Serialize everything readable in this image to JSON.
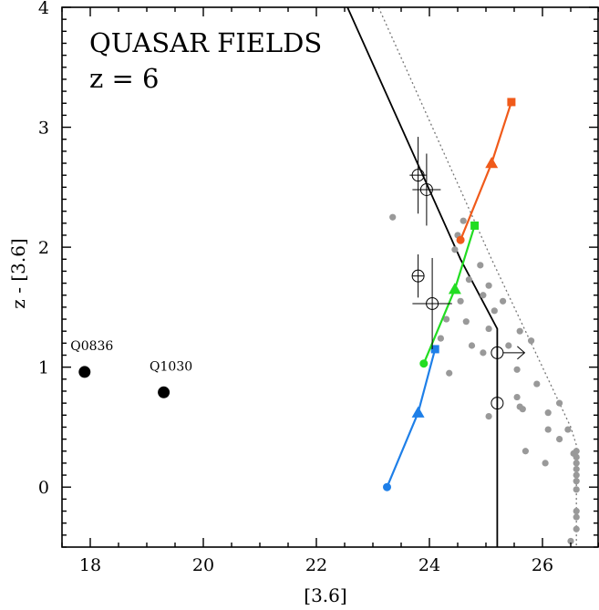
{
  "chart_data": {
    "type": "scatter",
    "title": "QUASAR FIELDS",
    "subtitle": "z = 6",
    "xlabel": "[3.6]",
    "ylabel": "z - [3.6]",
    "xlim": [
      17.5,
      27.0
    ],
    "ylim": [
      -0.5,
      4.0
    ],
    "xticks": [
      18,
      20,
      22,
      24,
      26
    ],
    "yticks": [
      0,
      1,
      2,
      3,
      4
    ],
    "grid": false,
    "quasars": [
      {
        "label": "Q0836",
        "x": 17.9,
        "y": 0.96
      },
      {
        "label": "Q1030",
        "x": 19.3,
        "y": 0.79
      }
    ],
    "tracks": [
      {
        "color": "#1E7FE8",
        "points": [
          {
            "x": 23.25,
            "y": 0.0,
            "marker": "circle"
          },
          {
            "x": 23.8,
            "y": 0.62,
            "marker": "triangle"
          },
          {
            "x": 24.1,
            "y": 1.15,
            "marker": "square"
          }
        ]
      },
      {
        "color": "#22DD22",
        "points": [
          {
            "x": 23.9,
            "y": 1.03,
            "marker": "circle"
          },
          {
            "x": 24.45,
            "y": 1.65,
            "marker": "triangle"
          },
          {
            "x": 24.8,
            "y": 2.18,
            "marker": "square"
          }
        ]
      },
      {
        "color": "#F05A1A",
        "points": [
          {
            "x": 24.55,
            "y": 2.06,
            "marker": "circle"
          },
          {
            "x": 25.1,
            "y": 2.7,
            "marker": "triangle"
          },
          {
            "x": 25.45,
            "y": 3.21,
            "marker": "square"
          }
        ]
      }
    ],
    "candidates": [
      {
        "x": 23.8,
        "y": 2.6,
        "xerr": 0.15,
        "yerr": 0.32
      },
      {
        "x": 23.95,
        "y": 2.48,
        "xerr": 0.25,
        "yerr": 0.3
      },
      {
        "x": 23.8,
        "y": 1.76,
        "xerr": 0.1,
        "yerr": 0.18
      },
      {
        "x": 24.05,
        "y": 1.53,
        "xerr": 0.35,
        "yerr": 0.38
      },
      {
        "x": 25.2,
        "y": 1.12,
        "xerr": 0,
        "yerr": 0,
        "lower_limit_x": true
      },
      {
        "x": 25.2,
        "y": 0.7,
        "xerr": 0,
        "yerr": 0
      }
    ],
    "field_sources": [
      {
        "x": 23.35,
        "y": 2.25
      },
      {
        "x": 24.6,
        "y": 2.22
      },
      {
        "x": 24.5,
        "y": 2.1
      },
      {
        "x": 24.45,
        "y": 1.98
      },
      {
        "x": 24.9,
        "y": 1.85
      },
      {
        "x": 24.7,
        "y": 1.73
      },
      {
        "x": 25.05,
        "y": 1.68
      },
      {
        "x": 24.95,
        "y": 1.6
      },
      {
        "x": 24.55,
        "y": 1.55
      },
      {
        "x": 25.3,
        "y": 1.55
      },
      {
        "x": 25.15,
        "y": 1.47
      },
      {
        "x": 24.3,
        "y": 1.4
      },
      {
        "x": 24.65,
        "y": 1.38
      },
      {
        "x": 25.05,
        "y": 1.32
      },
      {
        "x": 25.6,
        "y": 1.3
      },
      {
        "x": 24.2,
        "y": 1.24
      },
      {
        "x": 24.75,
        "y": 1.18
      },
      {
        "x": 24.95,
        "y": 1.12
      },
      {
        "x": 25.4,
        "y": 1.18
      },
      {
        "x": 25.8,
        "y": 1.22
      },
      {
        "x": 24.35,
        "y": 0.95
      },
      {
        "x": 25.55,
        "y": 0.98
      },
      {
        "x": 25.9,
        "y": 0.86
      },
      {
        "x": 25.55,
        "y": 0.75
      },
      {
        "x": 26.3,
        "y": 0.7
      },
      {
        "x": 25.6,
        "y": 0.67
      },
      {
        "x": 25.65,
        "y": 0.65
      },
      {
        "x": 26.1,
        "y": 0.62
      },
      {
        "x": 25.05,
        "y": 0.59
      },
      {
        "x": 26.1,
        "y": 0.48
      },
      {
        "x": 26.45,
        "y": 0.48
      },
      {
        "x": 26.3,
        "y": 0.4
      },
      {
        "x": 25.7,
        "y": 0.3
      },
      {
        "x": 26.55,
        "y": 0.28
      },
      {
        "x": 26.05,
        "y": 0.2
      },
      {
        "x": 26.6,
        "y": 0.3
      },
      {
        "x": 26.6,
        "y": 0.25
      },
      {
        "x": 26.6,
        "y": 0.2
      },
      {
        "x": 26.6,
        "y": 0.15
      },
      {
        "x": 26.6,
        "y": 0.1
      },
      {
        "x": 26.6,
        "y": 0.05
      },
      {
        "x": 26.6,
        "y": -0.02
      },
      {
        "x": 26.6,
        "y": -0.2
      },
      {
        "x": 26.6,
        "y": -0.25
      },
      {
        "x": 26.6,
        "y": -0.35
      },
      {
        "x": 26.5,
        "y": -0.45
      }
    ],
    "selection_lines": [
      {
        "style": "solid",
        "points": [
          [
            22.55,
            4.0
          ],
          [
            24.55,
            1.9
          ],
          [
            25.2,
            1.32
          ],
          [
            25.2,
            -0.5
          ]
        ]
      },
      {
        "style": "dotted",
        "points": [
          [
            23.1,
            4.0
          ],
          [
            25.1,
            1.9
          ],
          [
            26.5,
            0.5
          ],
          [
            26.6,
            0.35
          ],
          [
            26.6,
            -0.5
          ]
        ]
      }
    ],
    "colors": {
      "quasar": "#000000",
      "field": "#999999",
      "candidate": "#000000"
    }
  }
}
